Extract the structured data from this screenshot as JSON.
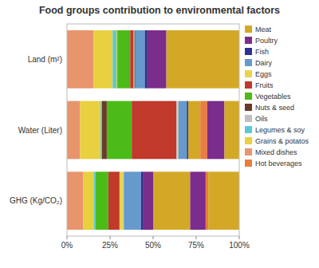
{
  "chart_data": {
    "type": "bar",
    "orientation": "horizontal",
    "stacked": true,
    "title": "Food groups contribution to environmental factors",
    "categories": [
      "Land (m²)",
      "Water (Liter)",
      "GHG (Kg/CO₂)"
    ],
    "series": [
      {
        "name": "Meat",
        "color": "#D4A827"
      },
      {
        "name": "Poultry",
        "color": "#7B2D8B"
      },
      {
        "name": "Fish",
        "color": "#2E3192"
      },
      {
        "name": "Dairy",
        "color": "#6699CC"
      },
      {
        "name": "Eggs",
        "color": "#E8D44D"
      },
      {
        "name": "Fruits",
        "color": "#C0392B"
      },
      {
        "name": "Vegetables",
        "color": "#4CBB17"
      },
      {
        "name": "Nuts & seed",
        "color": "#6B3A2A"
      },
      {
        "name": "Oils",
        "color": "#C0C0C0"
      },
      {
        "name": "Legumes & soy",
        "color": "#5BC8D8"
      },
      {
        "name": "Grains & potatos",
        "color": "#E8D040"
      },
      {
        "name": "Mixed dishes",
        "color": "#E8956D"
      },
      {
        "name": "Hot beverages",
        "color": "#E87D3E"
      }
    ],
    "segments": [
      [
        {
          "name": "Mixed dishes",
          "value": 0.155
        },
        {
          "name": "Grains & potatos",
          "value": 0.11
        },
        {
          "name": "Legumes & soy",
          "value": 0.022
        },
        {
          "name": "Eggs",
          "value": 0.005
        },
        {
          "name": "Vegetables",
          "value": 0.075
        },
        {
          "name": "Fruits",
          "value": 0.02
        },
        {
          "name": "Oils",
          "value": 0.005
        },
        {
          "name": "Nuts & seed",
          "value": 0.005
        },
        {
          "name": "Dairy",
          "value": 0.055
        },
        {
          "name": "Fish",
          "value": 0.015
        },
        {
          "name": "Poultry",
          "value": 0.11
        },
        {
          "name": "Meat",
          "value": 0.423
        }
      ],
      [
        {
          "name": "Mixed dishes",
          "value": 0.075
        },
        {
          "name": "Grains & potatos",
          "value": 0.12
        },
        {
          "name": "Legumes & soy",
          "value": 0.008
        },
        {
          "name": "Nuts & seed",
          "value": 0.028
        },
        {
          "name": "Vegetables",
          "value": 0.145
        },
        {
          "name": "Fruits",
          "value": 0.26
        },
        {
          "name": "Oils",
          "value": 0.005
        },
        {
          "name": "Eggs",
          "value": 0.005
        },
        {
          "name": "Dairy",
          "value": 0.05
        },
        {
          "name": "Fish",
          "value": 0.008
        },
        {
          "name": "Meat",
          "value": 0.07
        },
        {
          "name": "Hot beverages",
          "value": 0.04
        },
        {
          "name": "Poultry",
          "value": 0.1
        },
        {
          "name": "Meat",
          "value": 0.086
        }
      ],
      [
        {
          "name": "Mixed dishes",
          "value": 0.095
        },
        {
          "name": "Grains & potatos",
          "value": 0.06
        },
        {
          "name": "Legumes & soy",
          "value": 0.01
        },
        {
          "name": "Vegetables",
          "value": 0.075
        },
        {
          "name": "Fruits",
          "value": 0.065
        },
        {
          "name": "Eggs",
          "value": 0.02
        },
        {
          "name": "Oils",
          "value": 0.005
        },
        {
          "name": "Dairy",
          "value": 0.1
        },
        {
          "name": "Fish",
          "value": 0.01
        },
        {
          "name": "Poultry",
          "value": 0.06
        },
        {
          "name": "Meat",
          "value": 0.215
        },
        {
          "name": "Poultry",
          "value": 0.09
        },
        {
          "name": "Hot beverages",
          "value": 0.015
        },
        {
          "name": "Meat",
          "value": 0.18
        }
      ]
    ],
    "xlim": [
      0,
      1
    ],
    "xticks": [
      {
        "value": 0,
        "label": "0%"
      },
      {
        "value": 0.25,
        "label": "25%"
      },
      {
        "value": 0.5,
        "label": "50%"
      },
      {
        "value": 0.75,
        "label": "75%"
      },
      {
        "value": 1.0,
        "label": "100%"
      }
    ],
    "grid": false,
    "legend": "right"
  }
}
